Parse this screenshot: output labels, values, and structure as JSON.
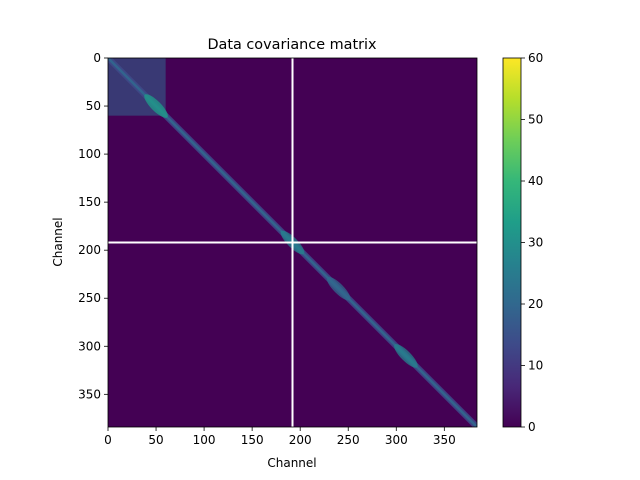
{
  "chart_data": {
    "type": "heatmap",
    "title": "Data covariance matrix",
    "xlabel": "Channel",
    "ylabel": "Channel",
    "size": 384,
    "x_ticks": [
      0,
      50,
      100,
      150,
      200,
      250,
      300,
      350
    ],
    "y_ticks": [
      0,
      50,
      100,
      150,
      200,
      250,
      300,
      350
    ],
    "y_axis_inverted": true,
    "colormap": "viridis",
    "color_range": [
      0,
      60
    ],
    "colorbar_ticks": [
      0,
      10,
      20,
      30,
      40,
      50,
      60
    ],
    "colorbar_stops": [
      "#440154",
      "#482878",
      "#3e4a89",
      "#31688e",
      "#26828e",
      "#1f9e89",
      "#35b779",
      "#6ece58",
      "#b5de2b",
      "#fde725"
    ],
    "divider_channel": 192,
    "divider_color": "#ffffff",
    "diagonal_peaks": [
      {
        "channel": 50,
        "value": 35
      },
      {
        "channel": 192,
        "value": 28
      },
      {
        "channel": 240,
        "value": 20
      },
      {
        "channel": 310,
        "value": 25
      }
    ],
    "blocks": [
      {
        "x": [
          0,
          60
        ],
        "y": [
          0,
          60
        ],
        "value": 18
      }
    ],
    "grid": false
  }
}
